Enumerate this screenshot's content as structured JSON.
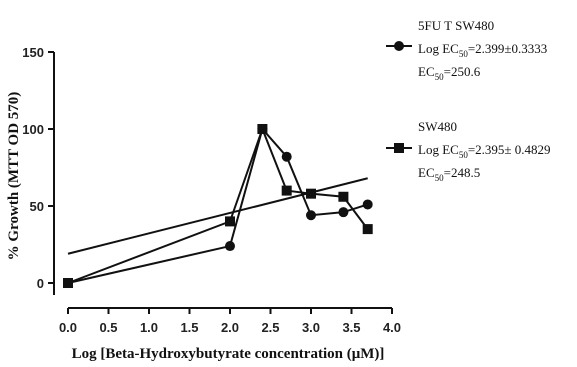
{
  "chart_data": {
    "type": "scatter",
    "xlabel": "Log [Beta-Hydroxybutyrate concentration (μM)]",
    "ylabel": "% Growth (MTT OD 570)",
    "xlim": [
      0,
      4
    ],
    "ylim": [
      -15,
      150
    ],
    "xticks": [
      "0.0",
      "0.5",
      "1.0",
      "1.5",
      "2.0",
      "2.5",
      "3.0",
      "3.5",
      "4.0"
    ],
    "xtick_values": [
      0,
      0.5,
      1,
      1.5,
      2,
      2.5,
      3,
      3.5,
      4
    ],
    "yticks": [
      "0",
      "50",
      "100",
      "150"
    ],
    "ytick_values": [
      0,
      50,
      100,
      150
    ],
    "grid": false,
    "legend_position": "right",
    "series": [
      {
        "name": "5FU T SW480",
        "marker": "circle",
        "x": [
          0.0,
          2.0,
          2.4,
          2.7,
          3.0,
          3.4,
          3.7
        ],
        "y": [
          0,
          24,
          100,
          82,
          44,
          46,
          51
        ],
        "fit_line": {
          "x": [
            0.0,
            3.7
          ],
          "y": [
            19,
            68
          ]
        },
        "legend_lines": [
          {
            "text": "5FU T SW480",
            "sub": ""
          },
          {
            "text": "Log EC",
            "sub": "50",
            "tail": "=2.399±0.3333"
          },
          {
            "text": "EC",
            "sub": "50",
            "tail": "=250.6"
          }
        ]
      },
      {
        "name": "SW480",
        "marker": "square",
        "x": [
          0.0,
          2.0,
          2.4,
          2.7,
          3.0,
          3.4,
          3.7
        ],
        "y": [
          0,
          40,
          100,
          60,
          58,
          56,
          35
        ],
        "legend_lines": [
          {
            "text": "SW480",
            "sub": ""
          },
          {
            "text": "Log EC",
            "sub": "50",
            "tail": "=2.395± 0.4829"
          },
          {
            "text": "EC",
            "sub": "50",
            "tail": "=248.5"
          }
        ]
      }
    ]
  }
}
